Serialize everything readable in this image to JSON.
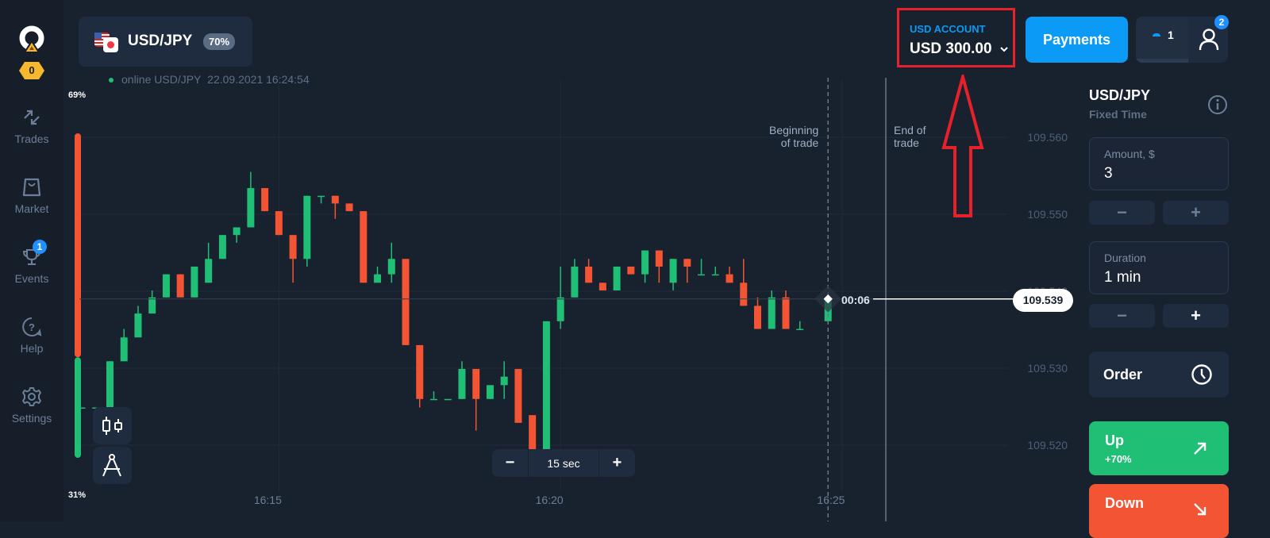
{
  "sidebar": {
    "logo_badge": "0",
    "items": [
      {
        "label": "Trades",
        "icon": "arrows-icon"
      },
      {
        "label": "Market",
        "icon": "bag-icon"
      },
      {
        "label": "Events",
        "icon": "trophy-icon",
        "badge": "1"
      },
      {
        "label": "Help",
        "icon": "help-icon"
      },
      {
        "label": "Settings",
        "icon": "gear-icon"
      }
    ]
  },
  "asset": {
    "name": "USD/JPY",
    "payout": "70%"
  },
  "status": {
    "text": "online USD/JPY",
    "datetime": "22.09.2021 16:24:54"
  },
  "account": {
    "label": "USD ACCOUNT",
    "balance": "USD 300.00"
  },
  "header": {
    "payments_label": "Payments",
    "trades_count": "1",
    "profile_badge": "2"
  },
  "chart_controls": {
    "minus": "−",
    "timeframe": "15 sec",
    "plus": "+"
  },
  "sentiment": {
    "up_label": "69%",
    "down_label": "31%",
    "sell_percent": 69,
    "buy_percent": 31
  },
  "trade_markers": {
    "begin": [
      "Beginning",
      "of trade"
    ],
    "end": [
      "End of",
      "trade"
    ],
    "timer": "00:06",
    "current_price": "109.539"
  },
  "colors": {
    "up": "#1fbf75",
    "down": "#f25434",
    "accent": "#0b9af5",
    "annotation": "#e8202a"
  },
  "chart_data": {
    "type": "candlestick",
    "interval": "15 sec",
    "y_ticks": [
      "109.520",
      "109.530",
      "109.540",
      "109.550",
      "109.560"
    ],
    "x_ticks": [
      "16:15",
      "16:20",
      "16:25"
    ],
    "ylim": [
      109.514,
      109.567
    ],
    "current_price": 109.539,
    "candles": [
      {
        "t": "16:11:30",
        "o": 109.5249,
        "h": 109.5249,
        "l": 109.5249,
        "c": 109.5249
      },
      {
        "t": "16:11:45",
        "o": 109.5249,
        "h": 109.5249,
        "l": 109.5232,
        "c": 109.5249
      },
      {
        "t": "16:12:00",
        "o": 109.5249,
        "h": 109.5309,
        "l": 109.5249,
        "c": 109.5309
      },
      {
        "t": "16:12:15",
        "o": 109.5309,
        "h": 109.5351,
        "l": 109.5309,
        "c": 109.534
      },
      {
        "t": "16:12:30",
        "o": 109.534,
        "h": 109.5381,
        "l": 109.534,
        "c": 109.5371
      },
      {
        "t": "16:12:45",
        "o": 109.5371,
        "h": 109.5401,
        "l": 109.5371,
        "c": 109.5392
      },
      {
        "t": "16:13:00",
        "o": 109.5392,
        "h": 109.5422,
        "l": 109.5392,
        "c": 109.5422
      },
      {
        "t": "16:13:15",
        "o": 109.5422,
        "h": 109.5422,
        "l": 109.5392,
        "c": 109.5392
      },
      {
        "t": "16:13:30",
        "o": 109.5392,
        "h": 109.5432,
        "l": 109.5392,
        "c": 109.5432
      },
      {
        "t": "16:13:45",
        "o": 109.5411,
        "h": 109.5463,
        "l": 109.5411,
        "c": 109.5442
      },
      {
        "t": "16:14:00",
        "o": 109.5442,
        "h": 109.5473,
        "l": 109.5442,
        "c": 109.5473
      },
      {
        "t": "16:14:15",
        "o": 109.5473,
        "h": 109.5483,
        "l": 109.5463,
        "c": 109.5483
      },
      {
        "t": "16:14:30",
        "o": 109.5483,
        "h": 109.5555,
        "l": 109.5483,
        "c": 109.5534
      },
      {
        "t": "16:14:45",
        "o": 109.5534,
        "h": 109.5534,
        "l": 109.5504,
        "c": 109.5504
      },
      {
        "t": "16:15:00",
        "o": 109.5504,
        "h": 109.5504,
        "l": 109.5473,
        "c": 109.5473
      },
      {
        "t": "16:15:15",
        "o": 109.5473,
        "h": 109.5473,
        "l": 109.5411,
        "c": 109.5442
      },
      {
        "t": "16:15:30",
        "o": 109.5442,
        "h": 109.5524,
        "l": 109.5432,
        "c": 109.5524
      },
      {
        "t": "16:15:45",
        "o": 109.5524,
        "h": 109.5524,
        "l": 109.5514,
        "c": 109.5524
      },
      {
        "t": "16:16:00",
        "o": 109.5524,
        "h": 109.5524,
        "l": 109.5494,
        "c": 109.5514
      },
      {
        "t": "16:16:15",
        "o": 109.5514,
        "h": 109.5514,
        "l": 109.5504,
        "c": 109.5504
      },
      {
        "t": "16:16:30",
        "o": 109.5504,
        "h": 109.5504,
        "l": 109.5411,
        "c": 109.5411
      },
      {
        "t": "16:16:45",
        "o": 109.5411,
        "h": 109.5432,
        "l": 109.5411,
        "c": 109.5422
      },
      {
        "t": "16:17:00",
        "o": 109.5422,
        "h": 109.5463,
        "l": 109.5411,
        "c": 109.5442
      },
      {
        "t": "16:17:15",
        "o": 109.5442,
        "h": 109.5442,
        "l": 109.533,
        "c": 109.533
      },
      {
        "t": "16:17:30",
        "o": 109.533,
        "h": 109.533,
        "l": 109.5249,
        "c": 109.526
      },
      {
        "t": "16:17:45",
        "o": 109.526,
        "h": 109.527,
        "l": 109.526,
        "c": 109.526
      },
      {
        "t": "16:18:00",
        "o": 109.526,
        "h": 109.526,
        "l": 109.526,
        "c": 109.526
      },
      {
        "t": "16:18:15",
        "o": 109.526,
        "h": 109.5309,
        "l": 109.526,
        "c": 109.5299
      },
      {
        "t": "16:18:30",
        "o": 109.5299,
        "h": 109.5299,
        "l": 109.5219,
        "c": 109.526
      },
      {
        "t": "16:18:45",
        "o": 109.526,
        "h": 109.5278,
        "l": 109.526,
        "c": 109.5278
      },
      {
        "t": "16:19:00",
        "o": 109.5278,
        "h": 109.5309,
        "l": 109.526,
        "c": 109.5289
      },
      {
        "t": "16:19:15",
        "o": 109.5299,
        "h": 109.5299,
        "l": 109.5229,
        "c": 109.5229
      },
      {
        "t": "16:19:30",
        "o": 109.5239,
        "h": 109.5239,
        "l": 109.516,
        "c": 109.516
      },
      {
        "t": "16:19:45",
        "o": 109.5191,
        "h": 109.5361,
        "l": 109.5191,
        "c": 109.5361
      },
      {
        "t": "16:20:00",
        "o": 109.5361,
        "h": 109.5432,
        "l": 109.5351,
        "c": 109.5392
      },
      {
        "t": "16:20:15",
        "o": 109.5392,
        "h": 109.5442,
        "l": 109.5392,
        "c": 109.5432
      },
      {
        "t": "16:20:30",
        "o": 109.5432,
        "h": 109.5442,
        "l": 109.5411,
        "c": 109.5411
      },
      {
        "t": "16:20:45",
        "o": 109.5411,
        "h": 109.5411,
        "l": 109.5401,
        "c": 109.5401
      },
      {
        "t": "16:21:00",
        "o": 109.5401,
        "h": 109.5432,
        "l": 109.5401,
        "c": 109.5432
      },
      {
        "t": "16:21:15",
        "o": 109.5432,
        "h": 109.5432,
        "l": 109.5422,
        "c": 109.5422
      },
      {
        "t": "16:21:30",
        "o": 109.5422,
        "h": 109.5453,
        "l": 109.5411,
        "c": 109.5453
      },
      {
        "t": "16:21:45",
        "o": 109.5453,
        "h": 109.5453,
        "l": 109.5411,
        "c": 109.5432
      },
      {
        "t": "16:22:00",
        "o": 109.5411,
        "h": 109.5442,
        "l": 109.5401,
        "c": 109.5442
      },
      {
        "t": "16:22:15",
        "o": 109.5442,
        "h": 109.5442,
        "l": 109.5411,
        "c": 109.5432
      },
      {
        "t": "16:22:30",
        "o": 109.5422,
        "h": 109.5442,
        "l": 109.5422,
        "c": 109.5422
      },
      {
        "t": "16:22:45",
        "o": 109.5422,
        "h": 109.5432,
        "l": 109.5422,
        "c": 109.5422
      },
      {
        "t": "16:23:00",
        "o": 109.5422,
        "h": 109.5432,
        "l": 109.5411,
        "c": 109.5411
      },
      {
        "t": "16:23:15",
        "o": 109.5411,
        "h": 109.5442,
        "l": 109.5381,
        "c": 109.5381
      },
      {
        "t": "16:23:30",
        "o": 109.5381,
        "h": 109.5392,
        "l": 109.5351,
        "c": 109.5351
      },
      {
        "t": "16:23:45",
        "o": 109.5351,
        "h": 109.5401,
        "l": 109.5351,
        "c": 109.5392
      },
      {
        "t": "16:24:00",
        "o": 109.5392,
        "h": 109.5401,
        "l": 109.5351,
        "c": 109.5351
      },
      {
        "t": "16:24:15",
        "o": 109.5351,
        "h": 109.5361,
        "l": 109.5351,
        "c": 109.5351
      },
      {
        "t": "16:24:45",
        "o": 109.5361,
        "h": 109.5397,
        "l": 109.5361,
        "c": 109.5389
      }
    ]
  },
  "panel": {
    "asset": "USD/JPY",
    "mode": "Fixed Time",
    "amount_label": "Amount, $",
    "amount_value": "3",
    "duration_label": "Duration",
    "duration_value": "1 min",
    "minus": "−",
    "plus": "+",
    "order_label": "Order",
    "up_label": "Up",
    "up_payout": "+70%",
    "down_label": "Down"
  }
}
